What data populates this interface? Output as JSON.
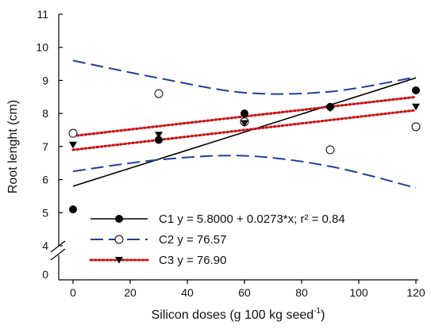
{
  "chart_data": {
    "type": "scatter",
    "title": "",
    "xlabel": "Silicon doses (g 100 kg seed",
    "xlabel_sup": "-1",
    "xlabel_close": ")",
    "ylabel": "Root lenght (cm)",
    "xlim": [
      0,
      120
    ],
    "ylim": [
      4,
      11
    ],
    "y_axis_break": true,
    "y_break_label": "0",
    "grid": false,
    "legend_position": "lower-center",
    "x_ticks": [
      "0",
      "20",
      "40",
      "60",
      "80",
      "100",
      "120"
    ],
    "y_ticks": [
      "4",
      "5",
      "6",
      "7",
      "8",
      "9",
      "10",
      "11"
    ],
    "series": [
      {
        "name": "C1",
        "legend_label": "C1 y = 5.8000 + 0.0273*x; r² = 0.84",
        "marker": "filled-circle",
        "line_style": "solid",
        "color": "#000000",
        "x": [
          0,
          30,
          60,
          90,
          120
        ],
        "y": [
          5.1,
          7.2,
          8.0,
          8.2,
          8.7
        ],
        "fit": {
          "intercept": 5.8,
          "slope": 0.0273
        }
      },
      {
        "name": "C2",
        "legend_label": "C2 y = 76.57",
        "marker": "open-circle",
        "line_style": "long-dash",
        "color": "#1f3f99",
        "x": [
          0,
          30,
          60,
          90,
          120
        ],
        "y": [
          7.4,
          8.6,
          7.75,
          6.9,
          7.6
        ],
        "band": {
          "upper": [
            [
              0,
              9.6
            ],
            [
              30,
              9.07
            ],
            [
              60,
              8.63
            ],
            [
              90,
              8.66
            ],
            [
              120,
              9.1
            ]
          ],
          "lower": [
            [
              0,
              6.25
            ],
            [
              30,
              6.6
            ],
            [
              60,
              6.72
            ],
            [
              90,
              6.4
            ],
            [
              120,
              5.75
            ]
          ]
        }
      },
      {
        "name": "C3",
        "legend_label": "C3 y = 76.90",
        "marker": "filled-triangle-down",
        "line_style": "dotted",
        "color": "#cc1111",
        "x": [
          0,
          30,
          60,
          90,
          120
        ],
        "y": [
          7.05,
          7.35,
          7.7,
          8.15,
          8.2
        ],
        "band": {
          "upper": [
            [
              0,
              7.32
            ],
            [
              120,
              8.5
            ]
          ],
          "lower": [
            [
              0,
              6.9
            ],
            [
              120,
              8.1
            ]
          ]
        }
      }
    ]
  }
}
